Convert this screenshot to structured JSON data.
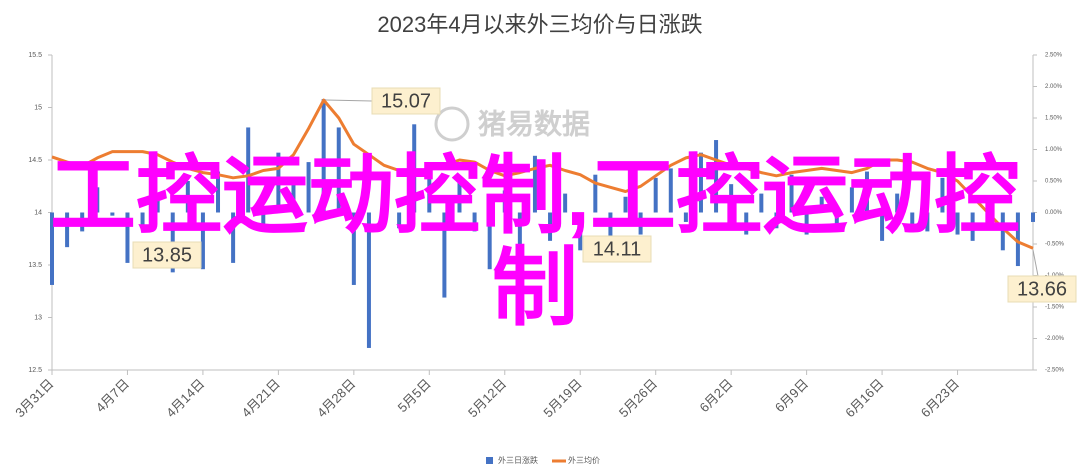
{
  "chart_data": {
    "type": "bar",
    "title": "2023年4月以来外三均价与日涨跌",
    "categories": [
      "3月31日",
      null,
      null,
      null,
      null,
      "4月7日",
      null,
      null,
      null,
      null,
      "4月14日",
      null,
      null,
      null,
      null,
      "4月21日",
      null,
      null,
      null,
      null,
      "4月28日",
      null,
      null,
      null,
      null,
      "5月5日",
      null,
      null,
      null,
      null,
      "5月12日",
      null,
      null,
      null,
      null,
      "5月19日",
      null,
      null,
      null,
      null,
      "5月26日",
      null,
      null,
      null,
      null,
      "6月2日",
      null,
      null,
      null,
      null,
      "6月9日",
      null,
      null,
      null,
      null,
      "6月16日",
      null,
      null,
      null,
      null,
      "6月23日",
      null,
      null,
      null,
      null,
      null
    ],
    "series": [
      {
        "name": "外三日涨跌",
        "type": "bar",
        "axis": "y2",
        "color": "#4472c4",
        "values": [
          -1.15,
          -0.55,
          -0.3,
          0.4,
          -0.05,
          -0.8,
          -0.25,
          0.3,
          -0.95,
          0.5,
          -0.9,
          0.65,
          -0.8,
          1.35,
          -0.25,
          0.95,
          0.55,
          0.8,
          1.8,
          1.35,
          -1.15,
          -2.15,
          0.4,
          -0.25,
          1.4,
          0.8,
          -1.35,
          0.55,
          -0.3,
          -0.9,
          0.35,
          -0.95,
          0.9,
          -0.45,
          0.3,
          -0.6,
          0.6,
          -0.4,
          0.25,
          -0.35,
          0.55,
          0.7,
          -0.15,
          0.95,
          1.15,
          0.45,
          -0.35,
          0.3,
          -0.25,
          0.6,
          -0.35,
          0.25,
          -0.2,
          0.4,
          0.65,
          -0.45,
          0.3,
          -0.3,
          -0.3,
          0.55,
          -0.35,
          -0.45,
          0.2,
          -0.6,
          -0.85,
          -0.15
        ]
      },
      {
        "name": "外三均价",
        "type": "line",
        "color": "#ed7d31",
        "values": [
          14.53,
          14.48,
          14.44,
          14.52,
          14.58,
          14.58,
          14.58,
          14.55,
          14.48,
          14.42,
          14.38,
          14.36,
          14.33,
          14.35,
          14.4,
          14.42,
          14.55,
          14.8,
          15.07,
          14.9,
          14.65,
          14.55,
          14.45,
          14.4,
          14.38,
          14.42,
          14.45,
          14.5,
          14.48,
          14.4,
          14.35,
          14.38,
          14.42,
          14.45,
          14.4,
          14.36,
          14.28,
          14.24,
          14.2,
          14.25,
          14.35,
          14.45,
          14.52,
          14.55,
          14.5,
          14.45,
          14.42,
          14.38,
          14.35,
          14.38,
          14.4,
          14.42,
          14.4,
          14.38,
          14.42,
          14.5,
          14.5,
          14.48,
          14.42,
          14.38,
          14.3,
          14.15,
          14.0,
          13.85,
          13.72,
          13.66
        ]
      }
    ],
    "ylim": [
      12.5,
      15.5
    ],
    "yticks": [
      12.5,
      13,
      13.5,
      14,
      14.5,
      15,
      15.5
    ],
    "y2lim": [
      -2.5,
      2.5
    ],
    "y2ticks": [
      {
        "value": -2.5,
        "label": "-2.50%"
      },
      {
        "value": -2,
        "label": "-2.00%"
      },
      {
        "value": -1.5,
        "label": "-1.50%"
      },
      {
        "value": -1,
        "label": "-1.00%"
      },
      {
        "value": -0.5,
        "label": "-0.50%"
      },
      {
        "value": 0,
        "label": "0.00%"
      },
      {
        "value": 0.5,
        "label": "0.50%"
      },
      {
        "value": 1,
        "label": "1.00%"
      },
      {
        "value": 1.5,
        "label": "1.50%"
      },
      {
        "value": 2,
        "label": "2.00%"
      },
      {
        "value": 2.5,
        "label": "2.50%"
      }
    ],
    "annotations": [
      15.07,
      13.85,
      14.11,
      13.66
    ],
    "watermark": "猪易数据",
    "overlay_text": "工控运动控制,工控运动控制"
  }
}
